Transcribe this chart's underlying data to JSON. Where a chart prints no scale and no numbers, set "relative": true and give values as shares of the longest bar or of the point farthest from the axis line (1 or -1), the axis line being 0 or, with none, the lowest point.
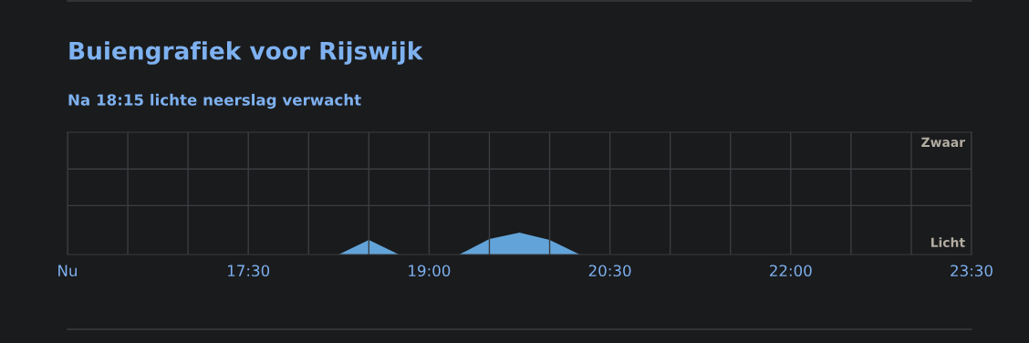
{
  "chart_data": {
    "type": "area",
    "title": "Buiengrafiek voor Rijswijk",
    "subtitle": "Na 18:15 lichte neerslag verwacht",
    "relative": true,
    "x": [
      16,
      18.25,
      18.5,
      18.75,
      19.25,
      19.5,
      19.75,
      20,
      20.25,
      23.5
    ],
    "series": [
      {
        "color": "#62a4d9",
        "values": [
          0,
          0,
          0.67,
          0,
          0,
          0.71,
          1,
          0.67,
          0,
          0
        ]
      }
    ],
    "xlim": [
      16,
      23.5
    ],
    "xticks": [
      {
        "value": 16,
        "label": "Nu"
      },
      {
        "value": 16.5,
        "label": null
      },
      {
        "value": 17,
        "label": null
      },
      {
        "value": 17.5,
        "label": "17:30"
      },
      {
        "value": 18,
        "label": null
      },
      {
        "value": 18.5,
        "label": null
      },
      {
        "value": 19,
        "label": "19:00"
      },
      {
        "value": 19.5,
        "label": null
      },
      {
        "value": 20,
        "label": null
      },
      {
        "value": 20.5,
        "label": "20:30"
      },
      {
        "value": 21,
        "label": null
      },
      {
        "value": 21.5,
        "label": null
      },
      {
        "value": 22,
        "label": "22:00"
      },
      {
        "value": 22.5,
        "label": null
      },
      {
        "value": 23,
        "label": null
      },
      {
        "value": 23.5,
        "label": "23:30"
      }
    ],
    "annotations": [
      "Zwaar",
      "Licht"
    ],
    "grid": true
  }
}
